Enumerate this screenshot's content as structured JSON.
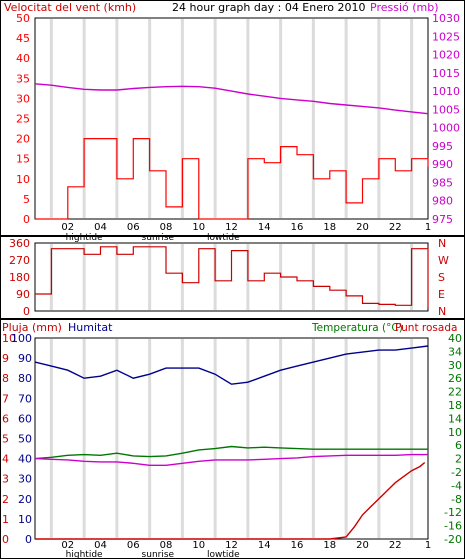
{
  "colors": {
    "panel_bg": "#ffffff",
    "band": "#dcdcdc",
    "frame": "#000000",
    "wind_gust": "#ff0000",
    "wind_avg": "#0000cc",
    "wind_min": "#008000",
    "pressure": "#cc00cc",
    "direction": "#cc0000",
    "rain": "#cc0000",
    "humidity": "#00008b",
    "temperature": "#007700",
    "dew": "#cc00cc"
  },
  "top": {
    "title": "24 hour graph day : 04 Enero 2010",
    "left_label": "Velocitat del vent (kmh)",
    "right_label": "Pressió (mb)",
    "left_ticks": [
      "50",
      "45",
      "40",
      "35",
      "30",
      "25",
      "20",
      "15",
      "10",
      "5",
      "0"
    ],
    "right_ticks": [
      "1030",
      "1025",
      "1020",
      "1015",
      "1010",
      "1005",
      "1000",
      "995",
      "990",
      "985",
      "980",
      "975"
    ]
  },
  "mid": {
    "left_ticks": [
      "360",
      "270",
      "180",
      "90",
      "0"
    ],
    "compass": [
      "N",
      "W",
      "S",
      "E",
      "N"
    ]
  },
  "bottom": {
    "rain_label": "Pluja (mm)",
    "hum_label": "Humitat",
    "temp_label": "Temperatura (°C)",
    "dew_label": "Punt rosada",
    "rain_ticks": [
      "10",
      "9",
      "8",
      "7",
      "6",
      "5",
      "4",
      "3",
      "2",
      "1",
      "0"
    ],
    "hum_ticks": [
      "100",
      "90",
      "80",
      "70",
      "60",
      "50",
      "40",
      "30",
      "20",
      "10",
      "0"
    ],
    "temp_ticks": [
      "40",
      "34",
      "30",
      "26",
      "22",
      "18",
      "14",
      "10",
      "6",
      "2",
      "-2",
      "-4",
      "-8",
      "-12",
      "-16",
      "-20"
    ]
  },
  "x_axis": {
    "hour_labels": [
      "02",
      "04",
      "06",
      "08",
      "10",
      "12",
      "14",
      "16",
      "18",
      "20",
      "22",
      "1"
    ],
    "tide_labels": [
      "hightide",
      "sunrise",
      "lowtide"
    ]
  },
  "chart_data": [
    {
      "type": "line",
      "name": "wind_and_pressure",
      "title": "24 hour graph day : 04 Enero 2010",
      "x_unit": "hour",
      "xlim": [
        0,
        24
      ],
      "ylim": [
        0,
        50
      ],
      "y2lim": [
        975,
        1030
      ],
      "series": [
        {
          "name": "Velocitat del vent (kmh)",
          "axis": "left",
          "x": [
            0,
            2,
            3,
            4,
            5,
            6,
            7,
            8,
            9,
            10,
            11,
            12,
            13,
            14,
            15,
            16,
            17,
            18,
            19,
            20,
            21,
            22,
            23,
            24
          ],
          "values": [
            0,
            8,
            20,
            20,
            10,
            20,
            12,
            3,
            15,
            0,
            0,
            0,
            15,
            14,
            18,
            16,
            10,
            12,
            4,
            10,
            15,
            12,
            15,
            13
          ]
        },
        {
          "name": "Pressió (mb)",
          "axis": "right",
          "x": [
            0,
            1,
            2,
            3,
            4,
            5,
            6,
            7,
            8,
            9,
            10,
            11,
            12,
            13,
            14,
            15,
            16,
            17,
            18,
            19,
            20,
            21,
            22,
            23,
            24
          ],
          "values": [
            1012,
            1011.6,
            1011,
            1010.5,
            1010.3,
            1010.3,
            1010.7,
            1011,
            1011.2,
            1011.3,
            1011.2,
            1010.8,
            1010,
            1009.2,
            1008.6,
            1008,
            1007.6,
            1007.2,
            1006.6,
            1006.2,
            1005.8,
            1005.4,
            1004.8,
            1004.3,
            1003.8
          ]
        }
      ]
    },
    {
      "type": "line",
      "name": "wind_direction",
      "x_unit": "hour",
      "xlim": [
        0,
        24
      ],
      "ylim": [
        0,
        360
      ],
      "series": [
        {
          "name": "direction",
          "x": [
            0,
            1,
            2,
            3,
            4,
            5,
            6,
            7,
            8,
            9,
            10,
            11,
            12,
            13,
            14,
            15,
            16,
            17,
            18,
            19,
            20,
            21,
            22,
            23,
            24
          ],
          "values": [
            90,
            330,
            330,
            300,
            340,
            300,
            340,
            340,
            200,
            150,
            330,
            160,
            320,
            160,
            200,
            180,
            160,
            130,
            110,
            80,
            40,
            35,
            30,
            330,
            20
          ]
        }
      ]
    },
    {
      "type": "line",
      "name": "humidity_temperature_rain",
      "x_unit": "hour",
      "xlim": [
        0,
        24
      ],
      "ylim": [
        0,
        100
      ],
      "y2lim": [
        -20,
        40
      ],
      "series": [
        {
          "name": "Humitat",
          "axis": "humidity",
          "x": [
            0,
            1,
            2,
            3,
            4,
            5,
            6,
            7,
            8,
            9,
            10,
            11,
            12,
            13,
            14,
            15,
            16,
            17,
            18,
            19,
            20,
            21,
            22,
            23,
            24
          ],
          "values": [
            88,
            86,
            84,
            80,
            81,
            84,
            80,
            82,
            85,
            85,
            85,
            82,
            77,
            78,
            81,
            84,
            86,
            88,
            90,
            92,
            93,
            94,
            94,
            95,
            96
          ]
        },
        {
          "name": "Temperatura (°C)",
          "axis": "temperature",
          "x": [
            0,
            1,
            2,
            3,
            4,
            5,
            6,
            7,
            8,
            9,
            10,
            11,
            12,
            13,
            14,
            15,
            16,
            17,
            18,
            19,
            20,
            21,
            22,
            23,
            24
          ],
          "values": [
            4,
            4.4,
            5,
            5.2,
            5,
            5.6,
            4.8,
            4.6,
            4.8,
            5.6,
            6.6,
            7,
            7.6,
            7.2,
            7.4,
            7.2,
            7,
            6.8,
            6.8,
            6.8,
            6.8,
            6.8,
            6.8,
            6.8,
            6.8
          ]
        },
        {
          "name": "Punt rosada",
          "axis": "temperature",
          "x": [
            0,
            1,
            2,
            3,
            4,
            5,
            6,
            7,
            8,
            9,
            10,
            11,
            12,
            13,
            14,
            15,
            16,
            17,
            18,
            19,
            20,
            21,
            22,
            23,
            24
          ],
          "values": [
            4,
            3.8,
            3.6,
            3.2,
            3,
            3,
            2.6,
            2,
            2,
            2.6,
            3.2,
            3.6,
            3.6,
            3.6,
            3.8,
            4,
            4.2,
            4.6,
            4.8,
            5,
            5,
            5,
            5,
            5.2,
            5.2
          ]
        },
        {
          "name": "Pluja (mm)",
          "axis": "rain",
          "x": [
            0,
            18,
            19,
            19.5,
            20,
            20.5,
            21,
            21.5,
            22,
            22.5,
            23,
            23.5,
            23.8
          ],
          "values": [
            0,
            0,
            0.1,
            0.6,
            1.2,
            1.6,
            2.0,
            2.4,
            2.8,
            3.1,
            3.4,
            3.6,
            3.8
          ]
        }
      ]
    }
  ]
}
